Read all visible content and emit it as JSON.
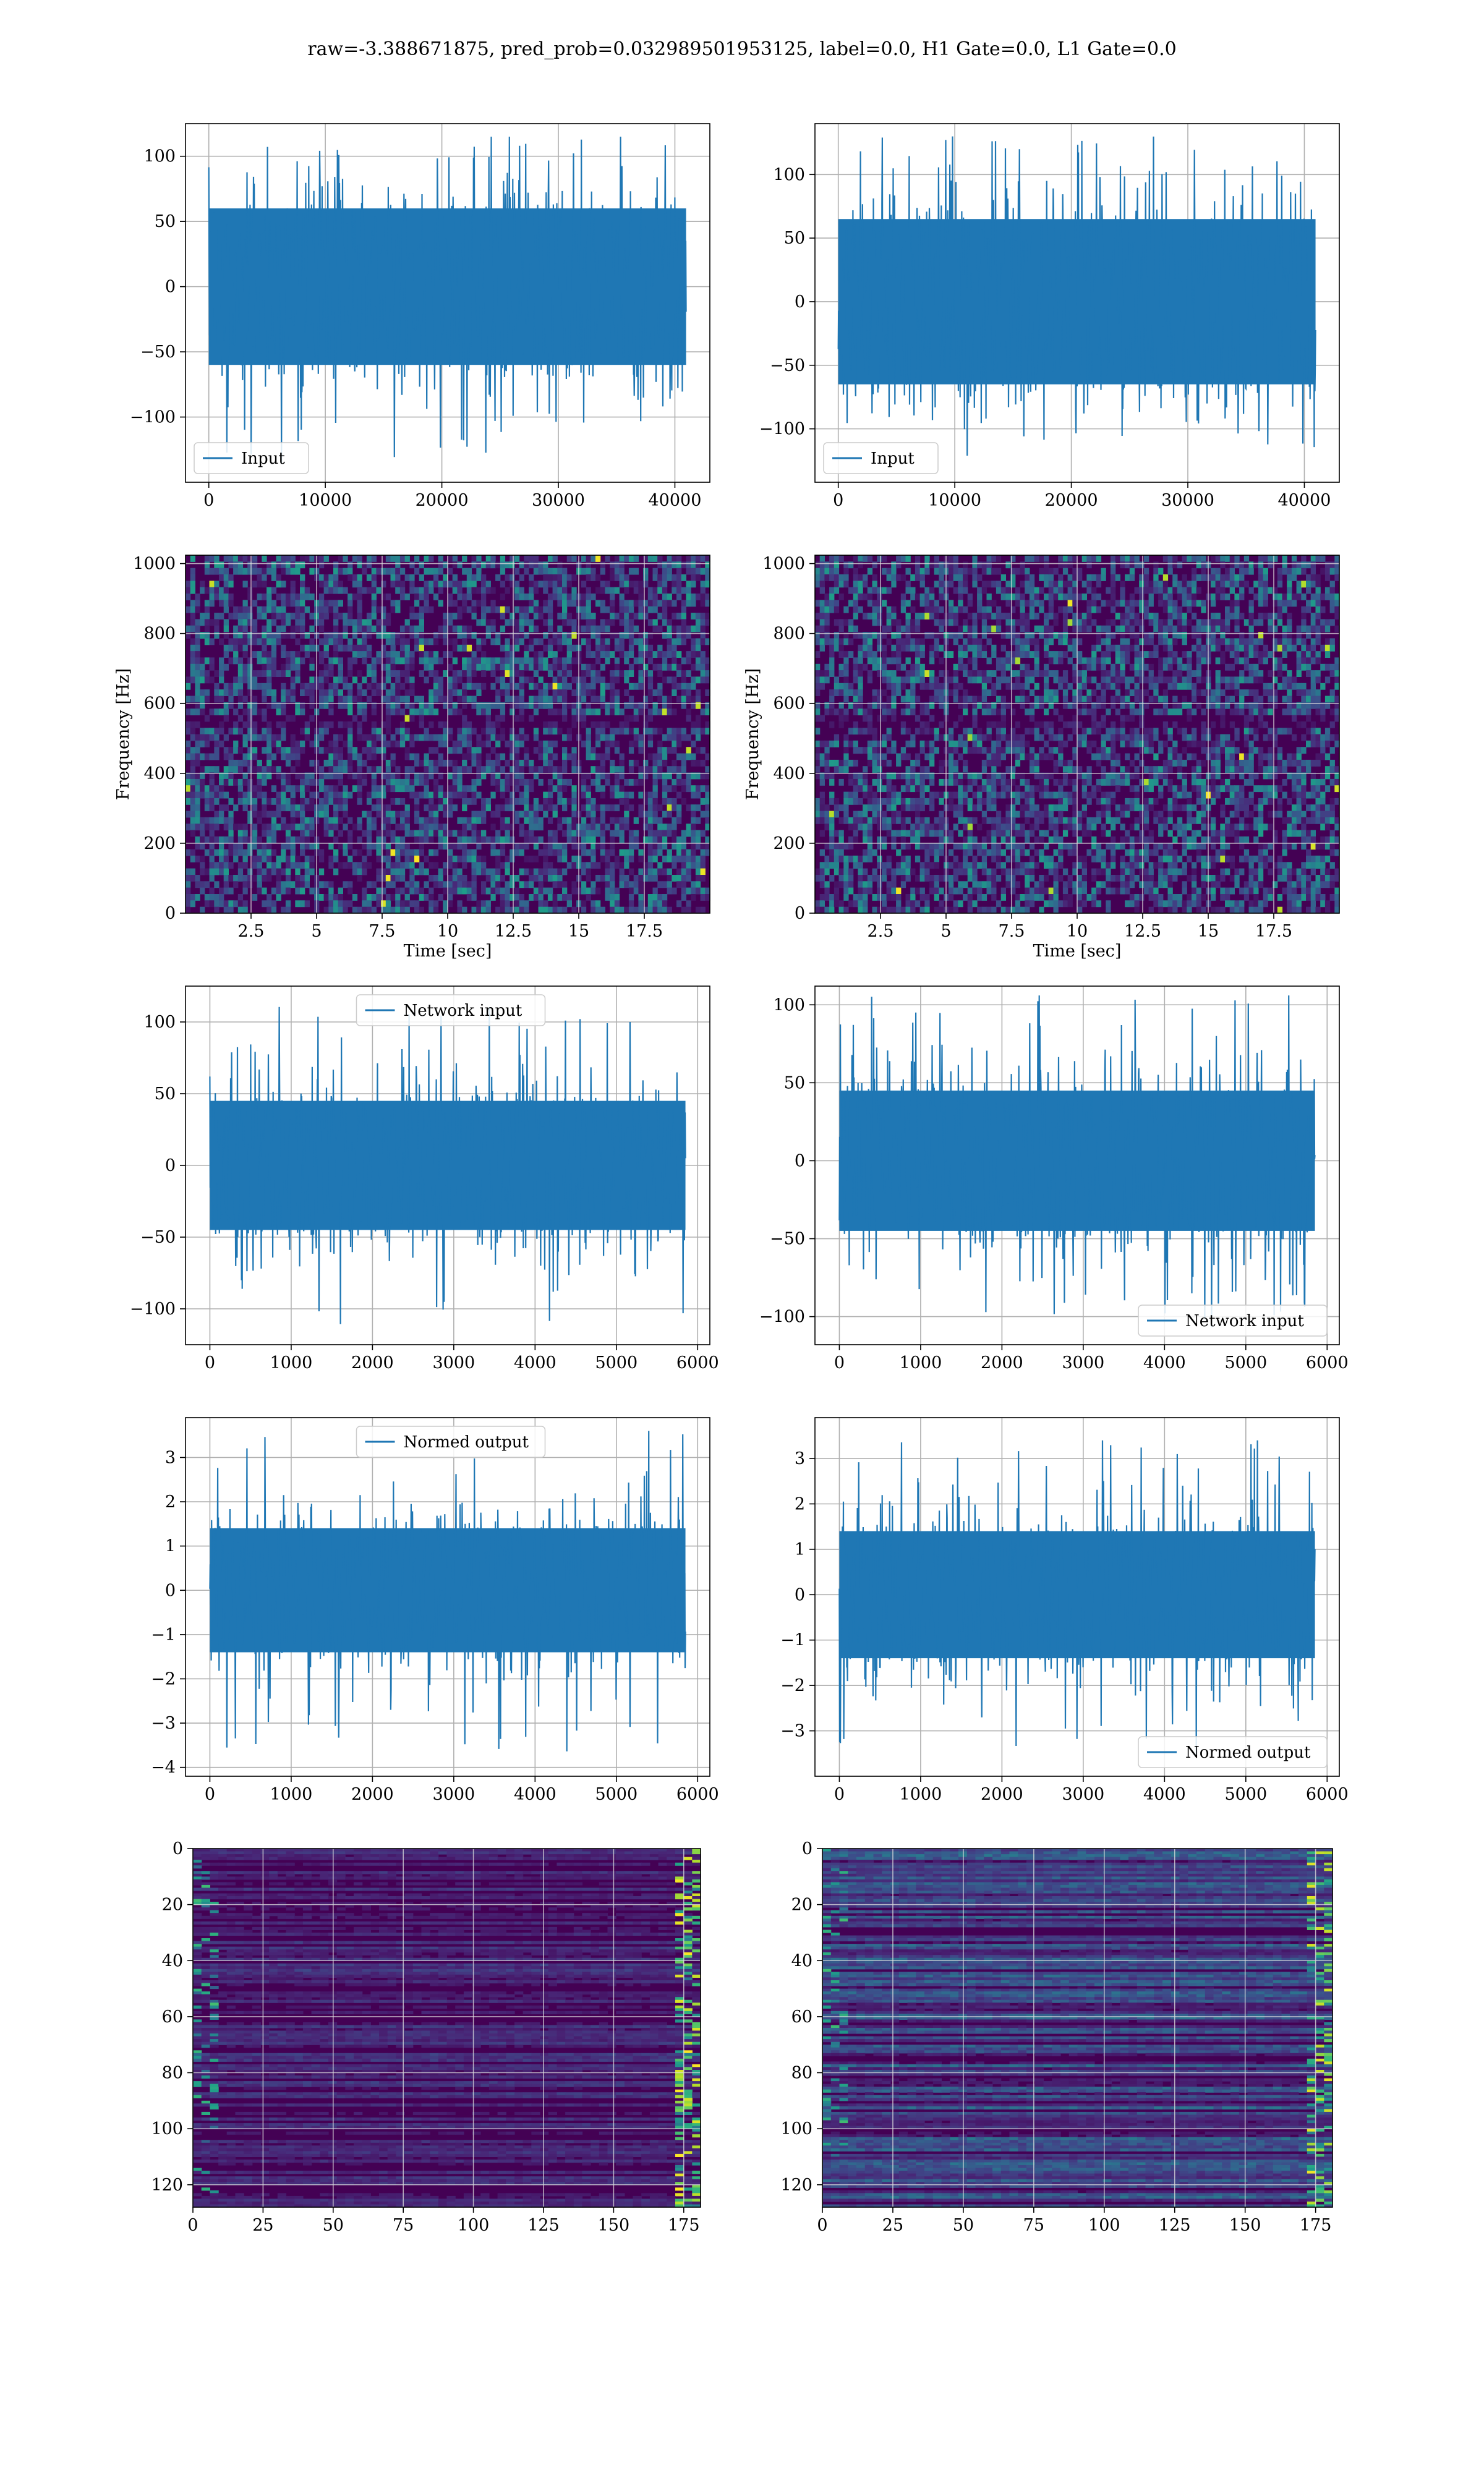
{
  "suptitle": "raw=-3.388671875, pred_prob=0.032989501953125, label=0.0, H1 Gate=0.0, L1 Gate=0.0",
  "colors": {
    "line": "#1f77b4",
    "grid": "#b0b0b0",
    "heat_low": "#440154",
    "heat_high": "#fde725"
  },
  "chart_data": [
    {
      "type": "line",
      "row": 0,
      "col": 0,
      "legend": "Input",
      "legend_loc": "lower left",
      "xlim": [
        -2000,
        43000
      ],
      "ylim": [
        -150,
        125
      ],
      "x_range": [
        0,
        40960
      ],
      "xticks": [
        0,
        10000,
        20000,
        30000,
        40000
      ],
      "yticks": [
        -100,
        -50,
        0,
        50,
        100
      ],
      "envelope": {
        "core": 60,
        "peak_max": 115,
        "peak_min": -137
      }
    },
    {
      "type": "line",
      "row": 0,
      "col": 1,
      "legend": "Input",
      "legend_loc": "lower left",
      "xlim": [
        -2000,
        43000
      ],
      "ylim": [
        -142,
        140
      ],
      "x_range": [
        0,
        40960
      ],
      "xticks": [
        0,
        10000,
        20000,
        30000,
        40000
      ],
      "yticks": [
        -100,
        -50,
        0,
        50,
        100
      ],
      "envelope": {
        "core": 65,
        "peak_max": 130,
        "peak_min": -130
      }
    },
    {
      "type": "heatmap",
      "row": 1,
      "col": 0,
      "xlabel": "Time [sec]",
      "ylabel": "Frequency [Hz]",
      "xlim": [
        0,
        20
      ],
      "ylim": [
        0,
        1024
      ],
      "xticks": [
        2.5,
        5.0,
        7.5,
        10.0,
        12.5,
        15.0,
        17.5
      ],
      "yticks": [
        0,
        200,
        400,
        600,
        800,
        1000
      ],
      "kind": "spectrogram"
    },
    {
      "type": "heatmap",
      "row": 1,
      "col": 1,
      "xlabel": "Time [sec]",
      "ylabel": "Frequency [Hz]",
      "xlim": [
        0,
        20
      ],
      "ylim": [
        0,
        1024
      ],
      "xticks": [
        2.5,
        5.0,
        7.5,
        10.0,
        12.5,
        15.0,
        17.5
      ],
      "yticks": [
        0,
        200,
        400,
        600,
        800,
        1000
      ],
      "kind": "spectrogram"
    },
    {
      "type": "line",
      "row": 2,
      "col": 0,
      "legend": "Network input",
      "legend_loc": "upper center",
      "xlim": [
        -300,
        6150
      ],
      "ylim": [
        -125,
        125
      ],
      "x_range": [
        0,
        5850
      ],
      "xticks": [
        0,
        1000,
        2000,
        3000,
        4000,
        5000,
        6000
      ],
      "yticks": [
        -100,
        -50,
        0,
        50,
        100
      ],
      "envelope": {
        "core": 45,
        "peak_max": 112,
        "peak_min": -112
      }
    },
    {
      "type": "line",
      "row": 2,
      "col": 1,
      "legend": "Network input",
      "legend_loc": "lower right",
      "xlim": [
        -300,
        6150
      ],
      "ylim": [
        -118,
        112
      ],
      "x_range": [
        0,
        5850
      ],
      "xticks": [
        0,
        1000,
        2000,
        3000,
        4000,
        5000,
        6000
      ],
      "yticks": [
        -100,
        -50,
        0,
        50,
        100
      ],
      "envelope": {
        "core": 45,
        "peak_max": 106,
        "peak_min": -108
      }
    },
    {
      "type": "line",
      "row": 3,
      "col": 0,
      "legend": "Normed output",
      "legend_loc": "upper center",
      "xlim": [
        -300,
        6150
      ],
      "ylim": [
        -4.2,
        3.9
      ],
      "x_range": [
        0,
        5850
      ],
      "xticks": [
        0,
        1000,
        2000,
        3000,
        4000,
        5000,
        6000
      ],
      "yticks": [
        -4,
        -3,
        -2,
        -1,
        0,
        1,
        2,
        3
      ],
      "envelope": {
        "core": 1.4,
        "peak_max": 3.6,
        "peak_min": -3.7
      }
    },
    {
      "type": "line",
      "row": 3,
      "col": 1,
      "legend": "Normed output",
      "legend_loc": "lower right",
      "xlim": [
        -300,
        6150
      ],
      "ylim": [
        -4.0,
        3.9
      ],
      "x_range": [
        0,
        5850
      ],
      "xticks": [
        0,
        1000,
        2000,
        3000,
        4000,
        5000,
        6000
      ],
      "yticks": [
        -3,
        -2,
        -1,
        0,
        1,
        2,
        3
      ],
      "envelope": {
        "core": 1.4,
        "peak_max": 3.4,
        "peak_min": -3.6
      }
    },
    {
      "type": "heatmap",
      "row": 4,
      "col": 0,
      "xlim": [
        0,
        181
      ],
      "ylim": [
        128,
        0
      ],
      "xticks": [
        0,
        25,
        50,
        75,
        100,
        125,
        150,
        175
      ],
      "yticks": [
        0,
        20,
        40,
        60,
        80,
        100,
        120
      ],
      "kind": "features"
    },
    {
      "type": "heatmap",
      "row": 4,
      "col": 1,
      "xlim": [
        0,
        181
      ],
      "ylim": [
        128,
        0
      ],
      "xticks": [
        0,
        25,
        50,
        75,
        100,
        125,
        150,
        175
      ],
      "yticks": [
        0,
        20,
        40,
        60,
        80,
        100,
        120
      ],
      "kind": "features"
    }
  ]
}
